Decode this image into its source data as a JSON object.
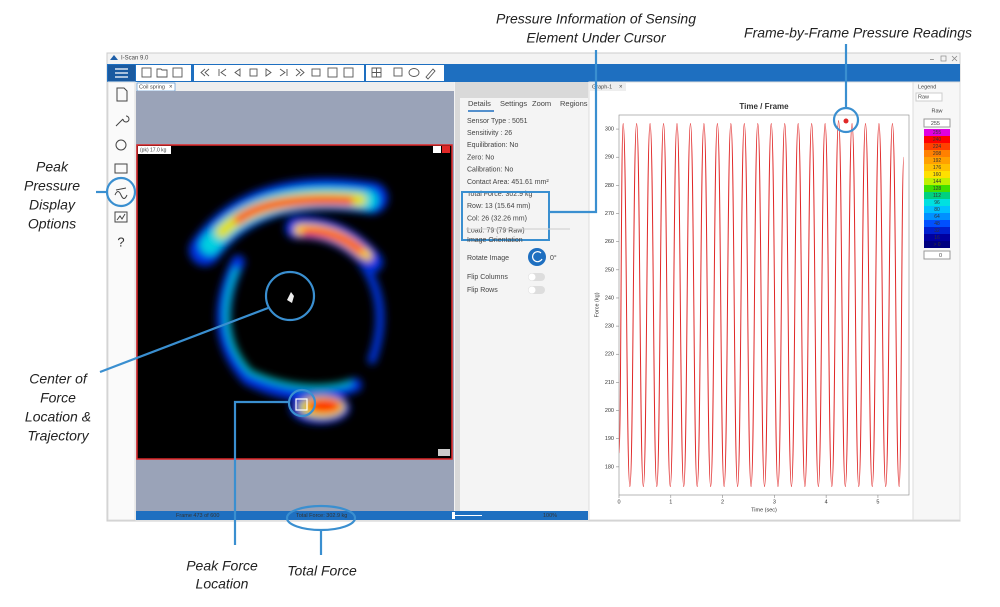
{
  "window": {
    "title": "I-Scan 9.0"
  },
  "left_pane": {
    "tab": "Coil spring",
    "peak_label": "(pk) 17.0 kg"
  },
  "details": {
    "tabs": [
      "Details",
      "Settings",
      "Zoom",
      "Regions"
    ],
    "lines": [
      "Sensor Type : 5051",
      "Sensitivity : 26",
      "Equilibration: No",
      "Zero: No",
      "Calibration: No",
      "Contact Area: 451.61 mm²",
      "Total Force: 302.9 kg",
      "Row: 13 (15.64 mm)",
      "Col: 26 (32.26 mm)",
      "Load: 79 (79 Raw)"
    ],
    "image_orientation": "Image Orientation",
    "rotate_image": "Rotate Image",
    "rotation": "0°",
    "flip_columns": "Flip Columns",
    "flip_rows": "Flip Rows"
  },
  "graph": {
    "tab": "Graph-1",
    "type": "line",
    "title": "Time / Frame",
    "x_label": "Time (sec)",
    "y_label": "Force (kg)",
    "x": [
      0,
      0.08,
      0.21,
      0.34,
      0.47,
      0.6,
      0.73,
      0.86,
      0.99,
      1.12,
      1.25,
      1.38,
      1.51,
      1.64,
      1.77,
      1.9,
      2.03,
      2.16,
      2.29,
      2.42,
      2.55,
      2.68,
      2.81,
      2.94,
      3.07,
      3.2,
      3.33,
      3.46,
      3.59,
      3.72,
      3.85,
      3.98,
      4.11,
      4.24,
      4.37,
      4.5,
      4.63,
      4.76,
      4.89,
      5.02,
      5.15,
      5.28,
      5.41,
      5.5
    ],
    "series": [
      {
        "color": "#e02828",
        "values": [
          185,
          302,
          173,
          302,
          173,
          302,
          173,
          302,
          173,
          302,
          173,
          302,
          173,
          302,
          173,
          302,
          173,
          302,
          173,
          302,
          173,
          302,
          173,
          302,
          173,
          302,
          173,
          302,
          173,
          302,
          173,
          302,
          173,
          303,
          173,
          302,
          173,
          302,
          173,
          302,
          173,
          302,
          173,
          290
        ]
      }
    ],
    "xlim": [
      0,
      5.6
    ],
    "ylim": [
      170,
      305
    ],
    "xticks": [
      0,
      1,
      2,
      3,
      4,
      5
    ],
    "yticks": [
      180,
      190,
      200,
      210,
      220,
      230,
      240,
      250,
      260,
      270,
      280,
      290,
      300
    ]
  },
  "legend": {
    "tab": "Legend",
    "source": "Raw",
    "heading": "Raw",
    "max_input": "255",
    "min_input": "0",
    "levels": [
      {
        "label": "255",
        "color": "#e000e0"
      },
      {
        "label": "240",
        "color": "#ff0000"
      },
      {
        "label": "224",
        "color": "#ff4000"
      },
      {
        "label": "208",
        "color": "#ff8000"
      },
      {
        "label": "192",
        "color": "#ffa000"
      },
      {
        "label": "176",
        "color": "#ffc000"
      },
      {
        "label": "160",
        "color": "#ffe000"
      },
      {
        "label": "144",
        "color": "#c0f000"
      },
      {
        "label": "128",
        "color": "#40e000"
      },
      {
        "label": "112",
        "color": "#00d080"
      },
      {
        "label": "96",
        "color": "#00e0e0"
      },
      {
        "label": "80",
        "color": "#00c0ff"
      },
      {
        "label": "64",
        "color": "#0090ff"
      },
      {
        "label": "48",
        "color": "#0050ff"
      },
      {
        "label": "32",
        "color": "#0020d0"
      },
      {
        "label": "16",
        "color": "#0000a0"
      },
      {
        "label": "> 0",
        "color": "#000080"
      }
    ]
  },
  "status": {
    "frame": "Frame 473 of 600",
    "total_force": "Total Force: 302.9 kg",
    "zoom": "100%"
  },
  "annotations": [
    {
      "lines": [
        "Pressure Information of Sensing",
        "Element Under Cursor"
      ]
    },
    {
      "lines": [
        "Frame-by-Frame Pressure Readings"
      ]
    },
    {
      "lines": [
        "Peak",
        "Pressure",
        "Display",
        "Options"
      ]
    },
    {
      "lines": [
        "Center of",
        "Force",
        "Location &",
        "Trajectory"
      ]
    },
    {
      "lines": [
        "Peak Force",
        "Location"
      ]
    },
    {
      "lines": [
        "Total Force"
      ]
    }
  ]
}
